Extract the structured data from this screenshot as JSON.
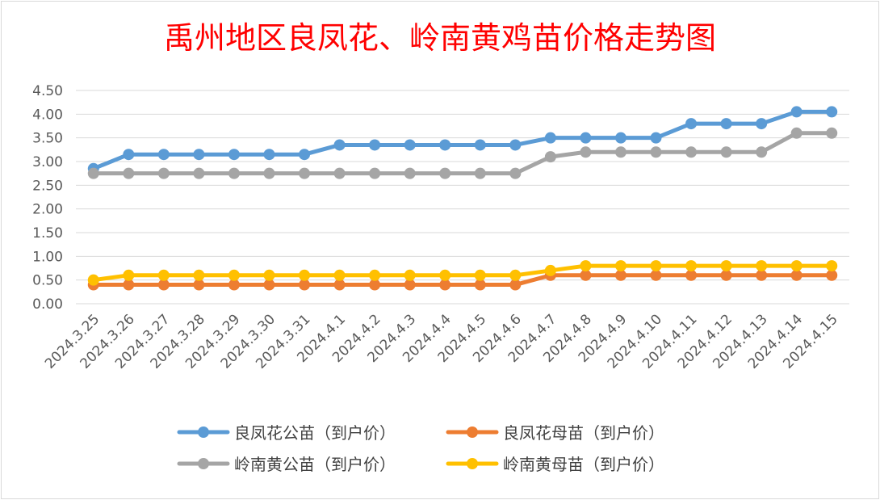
{
  "chart_data": {
    "type": "line",
    "title": "禹州地区良凤花、岭南黄鸡苗价格走势图",
    "xlabel": "",
    "ylabel": "",
    "ylim": [
      0,
      4.5
    ],
    "yticks": [
      "0.00",
      "0.50",
      "1.00",
      "1.50",
      "2.00",
      "2.50",
      "3.00",
      "3.50",
      "4.00",
      "4.50"
    ],
    "grid": true,
    "legend_position": "bottom",
    "categories": [
      "2024.3.25",
      "2024.3.26",
      "2024.3.27",
      "2024.3.28",
      "2024.3.29",
      "2024.3.30",
      "2024.3.31",
      "2024.4.1",
      "2024.4.2",
      "2024.4.3",
      "2024.4.4",
      "2024.4.5",
      "2024.4.6",
      "2024.4.7",
      "2024.4.8",
      "2024.4.9",
      "2024.4.10",
      "2024.4.11",
      "2024.4.12",
      "2024.4.13",
      "2024.4.14",
      "2024.4.15"
    ],
    "series": [
      {
        "name": "良凤花公苗（到户价）",
        "color": "#5b9bd5",
        "values": [
          2.85,
          3.15,
          3.15,
          3.15,
          3.15,
          3.15,
          3.15,
          3.35,
          3.35,
          3.35,
          3.35,
          3.35,
          3.35,
          3.5,
          3.5,
          3.5,
          3.5,
          3.8,
          3.8,
          3.8,
          4.05,
          4.05
        ]
      },
      {
        "name": "良凤花母苗（到户价）",
        "color": "#ed7d31",
        "values": [
          0.4,
          0.4,
          0.4,
          0.4,
          0.4,
          0.4,
          0.4,
          0.4,
          0.4,
          0.4,
          0.4,
          0.4,
          0.4,
          0.6,
          0.6,
          0.6,
          0.6,
          0.6,
          0.6,
          0.6,
          0.6,
          0.6
        ]
      },
      {
        "name": "岭南黄公苗（到户价）",
        "color": "#a5a5a5",
        "values": [
          2.75,
          2.75,
          2.75,
          2.75,
          2.75,
          2.75,
          2.75,
          2.75,
          2.75,
          2.75,
          2.75,
          2.75,
          2.75,
          3.1,
          3.2,
          3.2,
          3.2,
          3.2,
          3.2,
          3.2,
          3.6,
          3.6
        ]
      },
      {
        "name": "岭南黄母苗（到户价）",
        "color": "#ffc000",
        "values": [
          0.5,
          0.6,
          0.6,
          0.6,
          0.6,
          0.6,
          0.6,
          0.6,
          0.6,
          0.6,
          0.6,
          0.6,
          0.6,
          0.7,
          0.8,
          0.8,
          0.8,
          0.8,
          0.8,
          0.8,
          0.8,
          0.8
        ]
      }
    ]
  }
}
